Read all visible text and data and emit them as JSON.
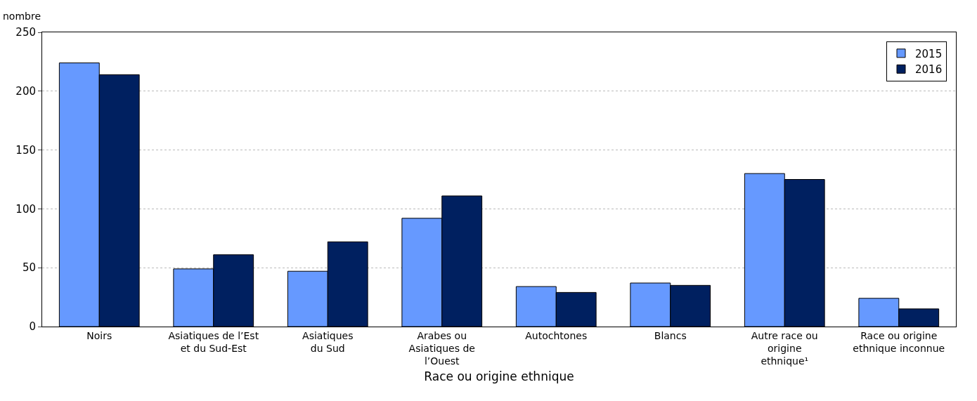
{
  "chart_data": {
    "type": "bar",
    "ylabel": "nombre",
    "xlabel": "Race ou origine ethnique",
    "categories": [
      "Noirs",
      "Asiatiques de l’Est\net du Sud-Est",
      "Asiatiques\ndu Sud",
      "Arabes ou\nAsiatiques de\nl’Ouest",
      "Autochtones",
      "Blancs",
      "Autre race ou\norigine\nethnique¹",
      "Race ou origine\nethnique inconnue"
    ],
    "series": [
      {
        "name": "2015",
        "color": "#6699ff",
        "values": [
          224,
          49,
          47,
          92,
          34,
          37,
          130,
          24
        ]
      },
      {
        "name": "2016",
        "color": "#002060",
        "values": [
          214,
          61,
          72,
          111,
          29,
          35,
          125,
          15
        ]
      }
    ],
    "ylim": [
      0,
      250
    ],
    "yticks": [
      0,
      50,
      100,
      150,
      200,
      250
    ],
    "grid": "y",
    "legend": "top right"
  }
}
